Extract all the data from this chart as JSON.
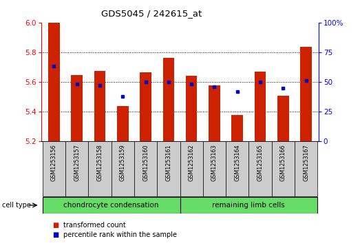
{
  "title": "GDS5045 / 242615_at",
  "samples": [
    "GSM1253156",
    "GSM1253157",
    "GSM1253158",
    "GSM1253159",
    "GSM1253160",
    "GSM1253161",
    "GSM1253162",
    "GSM1253163",
    "GSM1253164",
    "GSM1253165",
    "GSM1253166",
    "GSM1253167"
  ],
  "transformed_count": [
    6.0,
    5.645,
    5.675,
    5.435,
    5.665,
    5.762,
    5.643,
    5.577,
    5.375,
    5.67,
    5.505,
    5.834
  ],
  "percentile_rank": [
    63,
    48,
    47,
    38,
    50,
    50,
    48,
    46,
    42,
    50,
    45,
    51
  ],
  "ylim_left": [
    5.2,
    6.0
  ],
  "ylim_right": [
    0,
    100
  ],
  "yticks_left": [
    5.2,
    5.4,
    5.6,
    5.8,
    6.0
  ],
  "ytick_labels_right": [
    "0",
    "25",
    "50",
    "75",
    "100%"
  ],
  "bar_color": "#cc2200",
  "dot_color": "#0000cc",
  "bar_width": 0.5,
  "legend_items": [
    {
      "label": "transformed count",
      "color": "#cc2200"
    },
    {
      "label": "percentile rank within the sample",
      "color": "#0000cc"
    }
  ],
  "baseline": 5.2,
  "group1_label": "chondrocyte condensation",
  "group2_label": "remaining limb cells",
  "group_color": "#66dd66",
  "xtick_bg": "#cccccc",
  "cell_type_label": "cell type"
}
